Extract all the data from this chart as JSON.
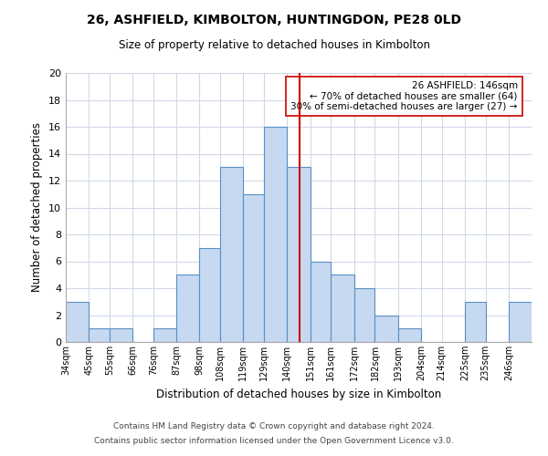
{
  "title": "26, ASHFIELD, KIMBOLTON, HUNTINGDON, PE28 0LD",
  "subtitle": "Size of property relative to detached houses in Kimbolton",
  "xlabel": "Distribution of detached houses by size in Kimbolton",
  "ylabel": "Number of detached properties",
  "bar_labels": [
    "34sqm",
    "45sqm",
    "55sqm",
    "66sqm",
    "76sqm",
    "87sqm",
    "98sqm",
    "108sqm",
    "119sqm",
    "129sqm",
    "140sqm",
    "151sqm",
    "161sqm",
    "172sqm",
    "182sqm",
    "193sqm",
    "204sqm",
    "214sqm",
    "225sqm",
    "235sqm",
    "246sqm"
  ],
  "bar_values": [
    3,
    1,
    1,
    0,
    1,
    5,
    7,
    13,
    11,
    16,
    13,
    6,
    5,
    4,
    2,
    1,
    0,
    0,
    3,
    0,
    3
  ],
  "bar_edges": [
    34,
    45,
    55,
    66,
    76,
    87,
    98,
    108,
    119,
    129,
    140,
    151,
    161,
    172,
    182,
    193,
    204,
    214,
    225,
    235,
    246,
    257
  ],
  "bar_color": "#c6d9f0",
  "bar_edge_color": "#5a8fc3",
  "ref_line_x": 146,
  "ref_line_color": "#cc0000",
  "ylim": [
    0,
    20
  ],
  "yticks": [
    0,
    2,
    4,
    6,
    8,
    10,
    12,
    14,
    16,
    18,
    20
  ],
  "annotation_title": "26 ASHFIELD: 146sqm",
  "annotation_line1": "← 70% of detached houses are smaller (64)",
  "annotation_line2": "30% of semi-detached houses are larger (27) →",
  "annotation_box_color": "#ffffff",
  "annotation_box_edge": "#cc0000",
  "footer1": "Contains HM Land Registry data © Crown copyright and database right 2024.",
  "footer2": "Contains public sector information licensed under the Open Government Licence v3.0.",
  "background_color": "#ffffff",
  "grid_color": "#d0d8e8"
}
